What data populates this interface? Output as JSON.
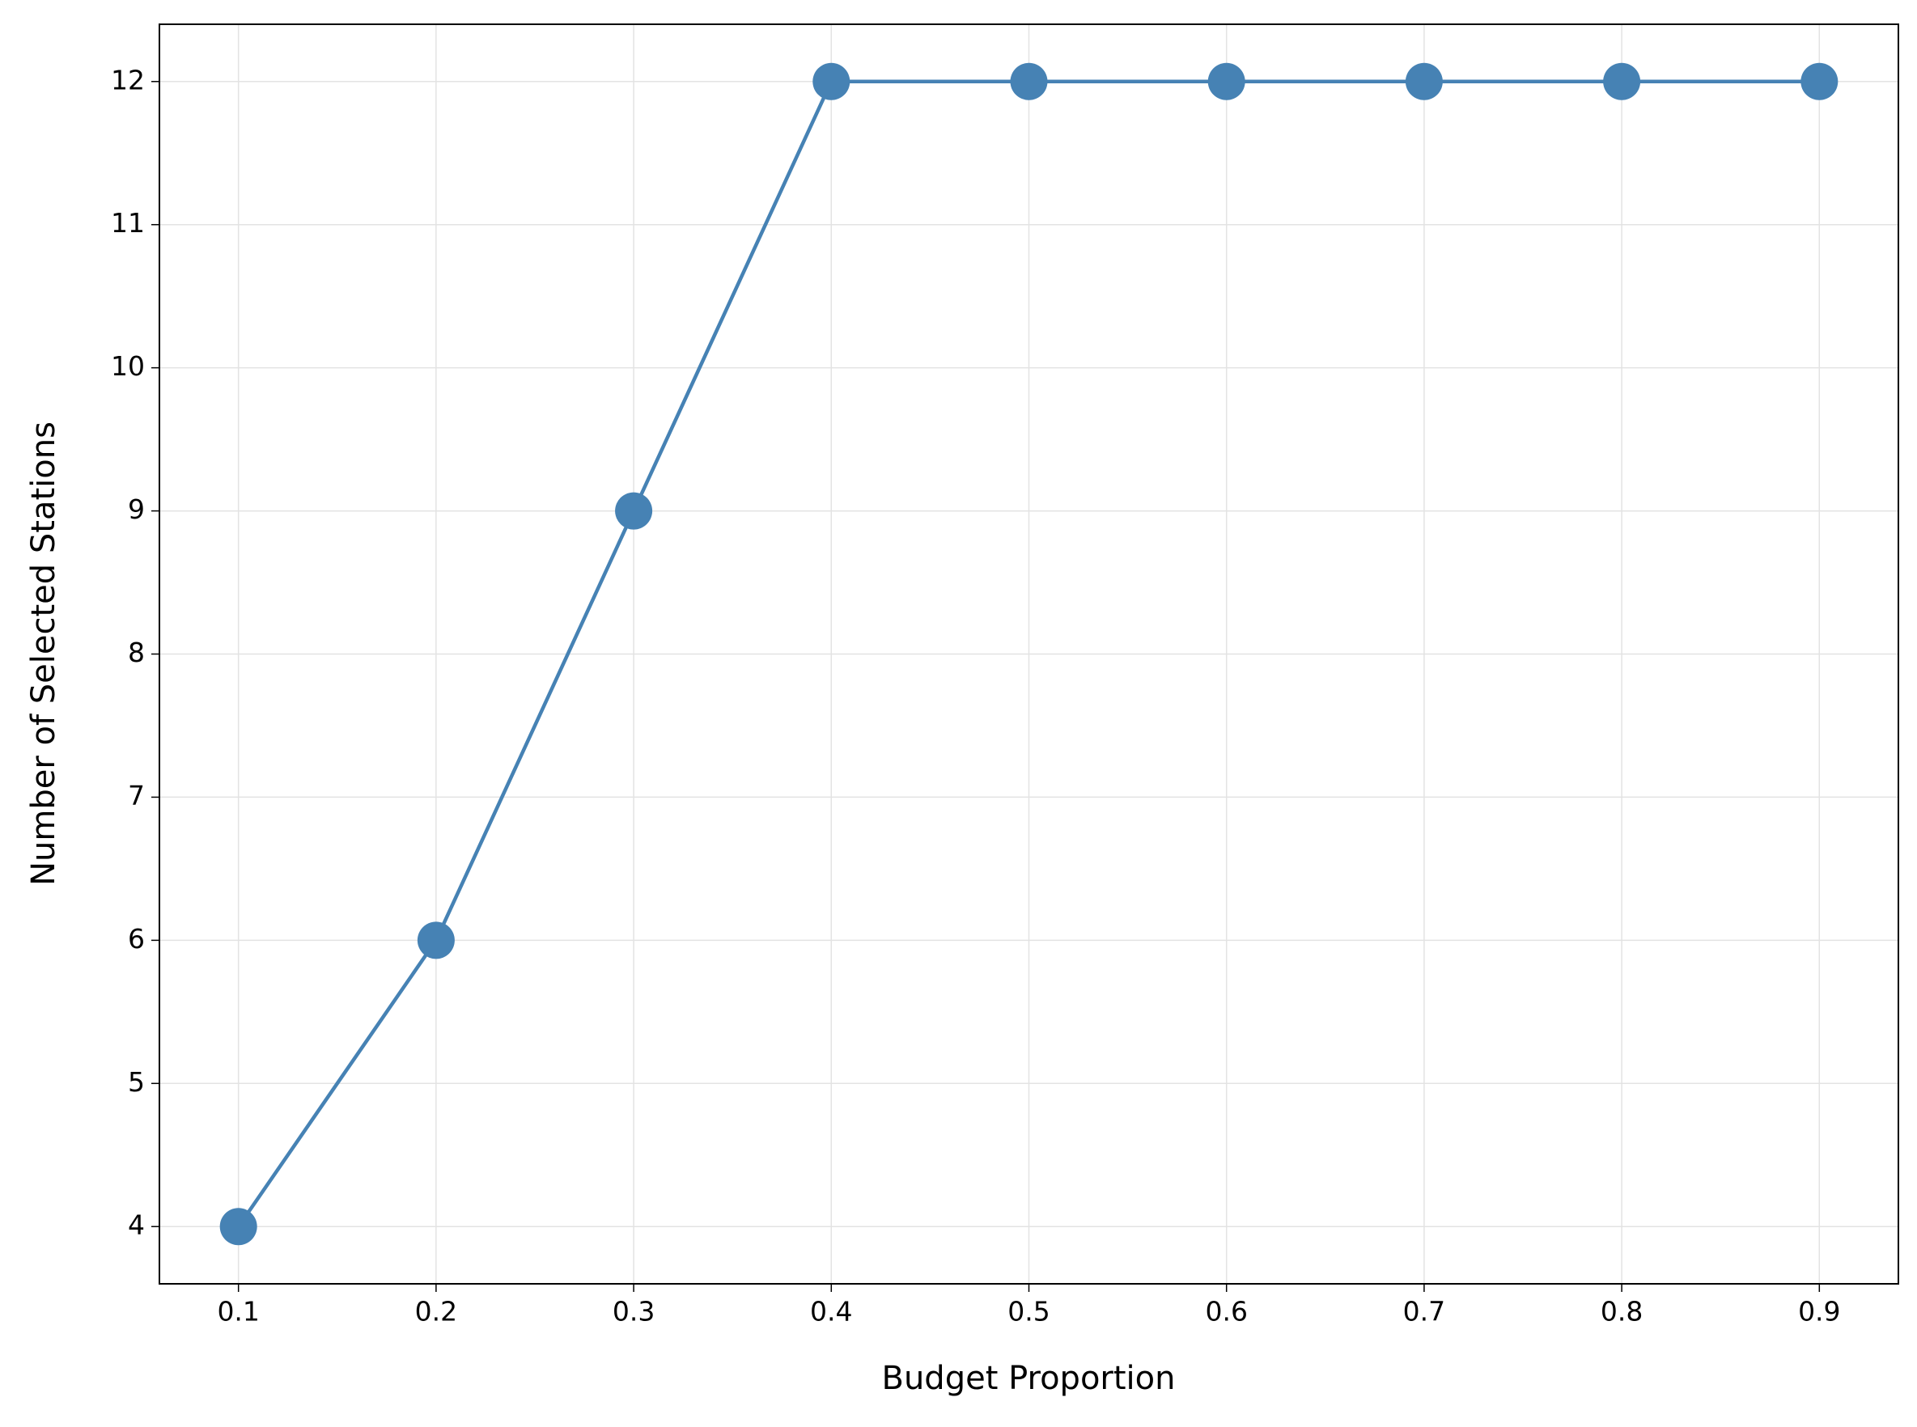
{
  "chart_data": {
    "type": "line",
    "xlabel": "Budget Proportion",
    "ylabel": "Number of Selected Stations",
    "x": [
      0.1,
      0.2,
      0.3,
      0.4,
      0.5,
      0.6,
      0.7,
      0.8,
      0.9
    ],
    "series": [
      {
        "color": "#4682b4",
        "values": [
          4,
          6,
          9,
          12,
          12,
          12,
          12,
          12,
          12
        ]
      }
    ],
    "xlim": [
      0.06,
      0.94
    ],
    "ylim": [
      3.6,
      12.4
    ],
    "xticks": [
      0.1,
      0.2,
      0.3,
      0.4,
      0.5,
      0.6,
      0.7,
      0.8,
      0.9
    ],
    "yticks": [
      4,
      5,
      6,
      7,
      8,
      9,
      10,
      11,
      12
    ],
    "grid": true
  }
}
